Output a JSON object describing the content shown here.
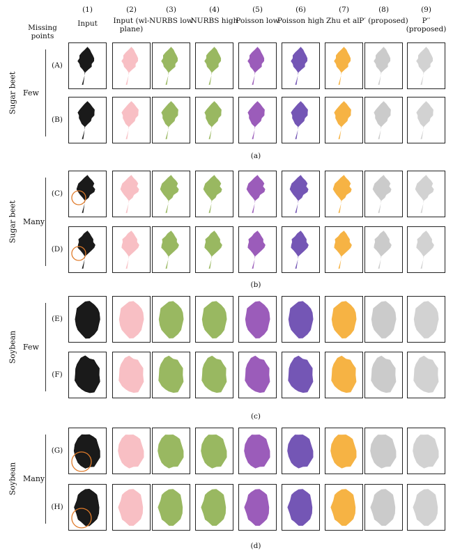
{
  "header": {
    "missing_points_label": "Missing points",
    "columns": [
      {
        "num": "(1)",
        "label": "Input"
      },
      {
        "num": "(2)",
        "label": "Input (wl-plane)"
      },
      {
        "num": "(3)",
        "label": "NURBS low"
      },
      {
        "num": "(4)",
        "label": "NURBS high"
      },
      {
        "num": "(5)",
        "label": "Poisson low"
      },
      {
        "num": "(6)",
        "label": "Poisson high"
      },
      {
        "num": "(7)",
        "label": "Zhu et al."
      },
      {
        "num": "(8)",
        "label": "P′ (proposed)"
      },
      {
        "num": "(9)",
        "label": "P′′ (proposed)"
      }
    ]
  },
  "groups": [
    {
      "species": "Sugar beet",
      "missing": "Few",
      "caption": "(a)",
      "rows": [
        "(A)",
        "(B)"
      ]
    },
    {
      "species": "Sugar beet",
      "missing": "Many",
      "caption": "(b)",
      "rows": [
        "(C)",
        "(D)"
      ]
    },
    {
      "species": "Soybean",
      "missing": "Few",
      "caption": "(c)",
      "rows": [
        "(E)",
        "(F)"
      ]
    },
    {
      "species": "Soybean",
      "missing": "Many",
      "caption": "(d)",
      "rows": [
        "(G)",
        "(H)"
      ]
    }
  ],
  "column_colors": [
    "#1a1a1a",
    "#f28a94",
    "#7fa63a",
    "#7fa63a",
    "#8a3fae",
    "#5c38a8",
    "#f5a623",
    "#6a6a6a",
    "#6a6a6a"
  ]
}
